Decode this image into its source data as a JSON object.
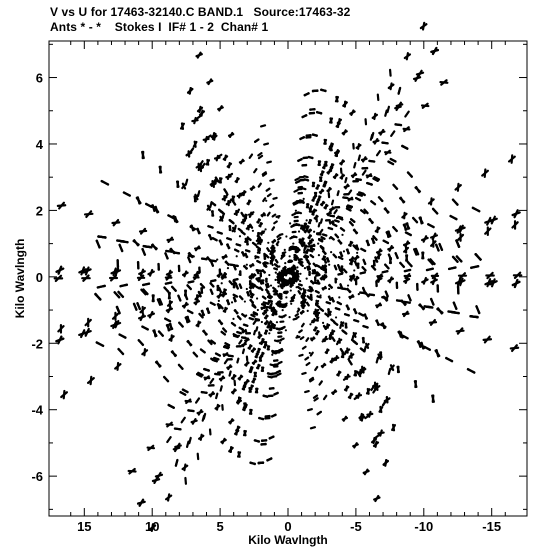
{
  "header": {
    "line1": "V vs U for 17463-32140.C BAND.1   Source:17463-32",
    "line2": "Ants * - *    Stokes I  IF# 1 - 2  Chan# 1"
  },
  "chart_data": {
    "type": "scatter",
    "title": "V vs U for 17463-32140.C BAND.1   Source:17463-32",
    "subtitle": "Ants * - *    Stokes I  IF# 1 - 2  Chan# 1",
    "xlabel": "Kilo Wavlngth",
    "ylabel": "Kilo Wavlngth",
    "xlim": [
      17.6,
      -17.6
    ],
    "ylim": [
      -7.2,
      7.1
    ],
    "x_ticks": [
      15,
      10,
      5,
      0,
      -5,
      -10,
      -15
    ],
    "x_tick_labels": [
      "15",
      "10",
      "5",
      "0",
      "-5",
      "-10",
      "-15"
    ],
    "y_ticks": [
      -6,
      -4,
      -2,
      0,
      2,
      4,
      6
    ],
    "y_tick_labels": [
      "-6",
      "-4",
      "-2",
      "0",
      "2",
      "4",
      "6"
    ],
    "grid": false,
    "baseline_arms": [
      {
        "endpoint": [
          -10.8,
          6.8
        ],
        "dir_base": 165
      },
      {
        "endpoint": [
          -16.8,
          1.9
        ],
        "dir_base": 160
      },
      {
        "endpoint": [
          -16.8,
          -0.2
        ],
        "dir_base": 155
      },
      {
        "endpoint": [
          -7.3,
          -3.7
        ],
        "dir_base": 150
      },
      {
        "endpoint": [
          -2.3,
          -4.1
        ],
        "dir_base": 145
      },
      {
        "endpoint": [
          7.2,
          5.6
        ],
        "dir_base": 140
      },
      {
        "endpoint": [
          -4.2,
          5.2
        ],
        "dir_base": 135
      },
      {
        "endpoint": [
          -3.6,
          3.7
        ],
        "dir_base": 130
      },
      {
        "endpoint": [
          7.1,
          3.8
        ],
        "dir_base": 125
      },
      {
        "endpoint": [
          10.8,
          -6.8
        ],
        "dir_base": 120
      },
      {
        "endpoint": [
          16.8,
          -1.9
        ],
        "dir_base": 115
      },
      {
        "endpoint": [
          16.8,
          0.2
        ],
        "dir_base": 110
      },
      {
        "endpoint": [
          8.2,
          -5.6
        ],
        "dir_base": 105
      },
      {
        "endpoint": [
          -7.2,
          -5.6
        ],
        "dir_base": 100
      },
      {
        "endpoint": [
          4.2,
          -5.2
        ],
        "dir_base": 95
      },
      {
        "endpoint": [
          3.6,
          -3.7
        ],
        "dir_base": 90
      },
      {
        "endpoint": [
          7.3,
          3.7
        ],
        "dir_base": 85
      },
      {
        "endpoint": [
          -9.8,
          1.7
        ],
        "dir_base": 80
      },
      {
        "endpoint": [
          11.0,
          2.3
        ],
        "dir_base": 75
      },
      {
        "endpoint": [
          -12.5,
          1.0
        ],
        "dir_base": 70
      },
      {
        "endpoint": [
          12.5,
          -1.0
        ],
        "dir_base": 65
      },
      {
        "endpoint": [
          9.8,
          -1.7
        ],
        "dir_base": 60
      },
      {
        "endpoint": [
          -11.0,
          -2.3
        ],
        "dir_base": 55
      },
      {
        "endpoint": [
          -14.0,
          0.6
        ],
        "dir_base": 50
      },
      {
        "endpoint": [
          14.0,
          -0.6
        ],
        "dir_base": 45
      },
      {
        "endpoint": [
          5.5,
          2.2
        ],
        "dir_base": 40
      },
      {
        "endpoint": [
          -5.5,
          -2.2
        ],
        "dir_base": 35
      },
      {
        "endpoint": [
          -8.6,
          3.9
        ],
        "dir_base": 30
      },
      {
        "endpoint": [
          8.6,
          -3.9
        ],
        "dir_base": 25
      },
      {
        "endpoint": [
          -6.0,
          2.8
        ],
        "dir_base": 20
      },
      {
        "endpoint": [
          6.0,
          -2.8
        ],
        "dir_base": 15
      },
      {
        "endpoint": [
          -13.7,
          -1.2
        ],
        "dir_base": 10
      },
      {
        "endpoint": [
          13.7,
          1.2
        ],
        "dir_base": 5
      },
      {
        "endpoint": [
          -2.0,
          5.6
        ],
        "dir_base": 0
      },
      {
        "endpoint": [
          2.0,
          -5.6
        ],
        "dir_base": 170
      },
      {
        "endpoint": [
          -1.0,
          3.0
        ],
        "dir_base": 175
      }
    ],
    "arm_point_fractions": [
      0.15,
      0.3,
      0.45,
      0.6,
      0.75,
      0.9,
      1.0
    ],
    "uv_dash_note": "each visibility sample drawn as a short dash along its track"
  }
}
